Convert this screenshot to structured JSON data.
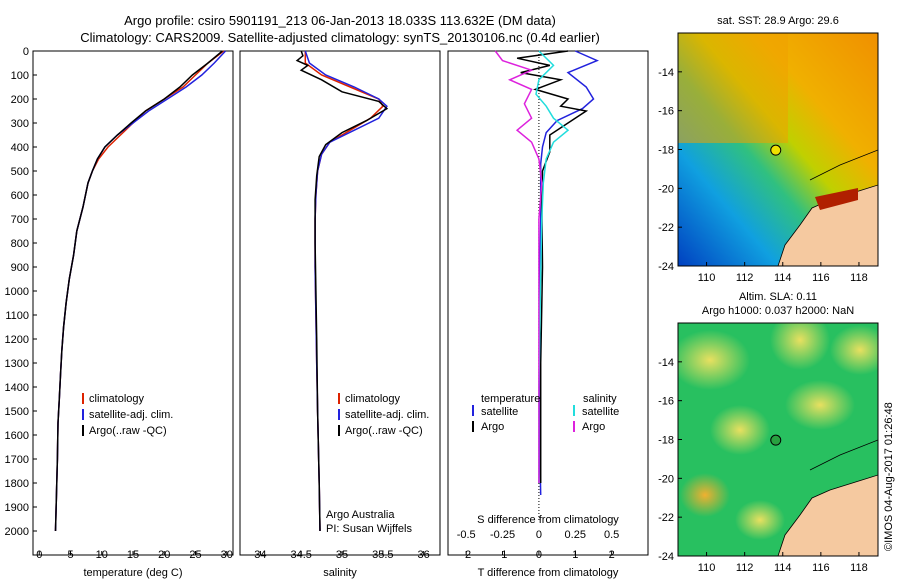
{
  "header": {
    "line1": "Argo profile: csiro 5901191_213 06-Jan-2013 18.033S 113.632E (DM data)",
    "line2": "Climatology: CARS2009. Satellite-adjusted climatology: synTS_20130106.nc (0.4d earlier)"
  },
  "colors": {
    "climatology": "#dd2200",
    "satellite": "#2222dd",
    "argo": "#000000",
    "salinity_sat": "#22dddd",
    "salinity_argo": "#dd22dd"
  },
  "chart_data": [
    {
      "type": "line",
      "panel": "temperature",
      "xlabel": "temperature (deg C)",
      "ylabel": "",
      "xlim": [
        -1,
        31
      ],
      "ylim": [
        2100,
        0
      ],
      "xticks": [
        0,
        5,
        10,
        15,
        20,
        25,
        30
      ],
      "yticks": [
        0,
        100,
        200,
        300,
        400,
        500,
        600,
        700,
        800,
        900,
        1000,
        1100,
        1200,
        1300,
        1400,
        1500,
        1600,
        1700,
        1800,
        1900,
        2000
      ],
      "legend": [
        "climatology",
        "satellite-adj. clim.",
        "Argo(..raw -QC)"
      ],
      "series": [
        {
          "name": "climatology",
          "color": "#dd2200",
          "x": [
            29.5,
            27,
            25,
            23,
            20,
            17,
            15,
            13,
            11,
            9.5,
            8.5,
            7.8,
            7,
            6,
            5.5,
            4.8,
            4.3,
            3.9,
            3.6,
            3.4,
            3.2,
            3,
            2.9,
            2.6
          ],
          "y": [
            0,
            50,
            100,
            150,
            200,
            250,
            300,
            350,
            400,
            450,
            500,
            550,
            650,
            750,
            850,
            950,
            1050,
            1150,
            1250,
            1350,
            1450,
            1550,
            1700,
            2000
          ]
        },
        {
          "name": "satellite-adj. clim.",
          "color": "#2222dd",
          "x": [
            29.8,
            28,
            26,
            23.5,
            20.5,
            17.5,
            15,
            12.5,
            10.5,
            9.3,
            8.5,
            7.8,
            7,
            6,
            5.5,
            4.8,
            4.3,
            3.9,
            3.6,
            3.4,
            3.2,
            3,
            2.9,
            2.6
          ],
          "y": [
            0,
            50,
            100,
            150,
            200,
            250,
            300,
            350,
            400,
            450,
            500,
            550,
            650,
            750,
            850,
            950,
            1050,
            1150,
            1250,
            1350,
            1450,
            1550,
            1700,
            2000
          ]
        },
        {
          "name": "Argo(..raw -QC)",
          "color": "#000000",
          "x": [
            29.3,
            27,
            24.5,
            22.5,
            20,
            17,
            14.7,
            12.5,
            10.5,
            9.3,
            8.5,
            7.8,
            7,
            6,
            5.5,
            4.8,
            4.3,
            3.9,
            3.6,
            3.4,
            3.2,
            3,
            2.9,
            2.6
          ],
          "y": [
            0,
            50,
            100,
            150,
            200,
            250,
            300,
            350,
            400,
            450,
            500,
            550,
            650,
            750,
            850,
            950,
            1050,
            1150,
            1250,
            1350,
            1450,
            1550,
            1700,
            2000
          ]
        }
      ]
    },
    {
      "type": "line",
      "panel": "salinity",
      "xlabel": "salinity",
      "xlim": [
        33.75,
        36.2
      ],
      "ylim": [
        2100,
        0
      ],
      "xticks": [
        34,
        34.5,
        35,
        35.5,
        36
      ],
      "xticklabels": [
        "34",
        "34.5",
        "35",
        "35.5",
        "36"
      ],
      "legend": [
        "climatology",
        "satellite-adj. clim.",
        "Argo(..raw -QC)"
      ],
      "annotation": [
        "Argo Australia",
        "PI: Susan Wijffels"
      ],
      "series": [
        {
          "name": "climatology",
          "color": "#dd2200",
          "x": [
            34.55,
            34.55,
            34.75,
            35.1,
            35.45,
            35.5,
            35.35,
            35.1,
            34.85,
            34.75,
            34.7,
            34.68,
            34.67,
            34.67,
            34.68,
            34.69,
            34.7,
            34.72,
            34.73
          ],
          "y": [
            0,
            50,
            100,
            150,
            200,
            230,
            280,
            330,
            380,
            430,
            500,
            600,
            700,
            900,
            1100,
            1300,
            1500,
            1800,
            2000
          ]
        },
        {
          "name": "satellite-adj. clim.",
          "color": "#2222dd",
          "x": [
            34.55,
            34.6,
            34.8,
            35.15,
            35.45,
            35.55,
            35.45,
            35.15,
            34.85,
            34.75,
            34.7,
            34.68,
            34.67,
            34.67,
            34.68,
            34.69,
            34.7,
            34.72,
            34.73
          ],
          "y": [
            0,
            50,
            100,
            150,
            200,
            230,
            280,
            330,
            380,
            430,
            500,
            600,
            700,
            900,
            1100,
            1300,
            1500,
            1800,
            2000
          ]
        },
        {
          "name": "Argo(..raw -QC)",
          "color": "#000000",
          "x": [
            34.5,
            34.52,
            34.45,
            34.58,
            34.5,
            34.75,
            35.0,
            35.45,
            35.55,
            35.3,
            35.0,
            34.8,
            34.72,
            34.69,
            34.67,
            34.67,
            34.68,
            34.69,
            34.7,
            34.72,
            34.73
          ],
          "y": [
            0,
            20,
            40,
            60,
            80,
            120,
            170,
            210,
            240,
            290,
            340,
            390,
            440,
            520,
            620,
            800,
            1000,
            1200,
            1500,
            1800,
            2000
          ]
        }
      ]
    },
    {
      "type": "line",
      "panel": "difference",
      "xlabel": "T difference from climatology",
      "xlabel_top": "S difference from climatology",
      "xlim": [
        -2.5,
        3
      ],
      "ylim": [
        2100,
        0
      ],
      "xticks_T": [
        -2,
        -1,
        0,
        1,
        2
      ],
      "xticks_S": [
        -0.5,
        -0.25,
        0,
        0.25,
        0.5
      ],
      "xticklabels_S": [
        "-0.5",
        "-0.25",
        "0",
        "0.25",
        "0.5"
      ],
      "legend_T_title": "temperature",
      "legend_S_title": "salinity",
      "legend_T": [
        "satellite",
        "Argo"
      ],
      "legend_S": [
        "satellite",
        "Argo"
      ],
      "series": [
        {
          "name": "T satellite",
          "color": "#2222dd",
          "x": [
            1.0,
            1.6,
            0.8,
            1.3,
            1.5,
            1.2,
            0.5,
            0.2,
            0.1,
            0.05,
            0.05,
            0.05,
            0.02,
            0.03,
            0.03,
            0.05
          ],
          "y": [
            0,
            40,
            90,
            150,
            200,
            240,
            290,
            340,
            400,
            470,
            550,
            700,
            1000,
            1400,
            1700,
            1850
          ]
        },
        {
          "name": "T Argo",
          "color": "#000000",
          "x": [
            0.8,
            -0.6,
            0.3,
            -0.5,
            0.6,
            -0.1,
            0.8,
            0.6,
            1.3,
            0.8,
            0.3,
            0.3,
            0.1,
            0.08,
            0.1,
            0.05,
            0.05,
            0.05
          ],
          "y": [
            0,
            30,
            60,
            90,
            120,
            160,
            200,
            230,
            250,
            300,
            350,
            420,
            500,
            650,
            900,
            1300,
            1700,
            1800
          ]
        },
        {
          "name": "S satellite",
          "color": "#22dddd",
          "x": [
            0.0,
            0.1,
            0.0,
            -0.02,
            0.05,
            0.1,
            0.2,
            0.1,
            0.05,
            0.03,
            0.02,
            0.01,
            0.0,
            0.0,
            0.0
          ],
          "y": [
            0,
            60,
            120,
            180,
            230,
            280,
            330,
            380,
            450,
            550,
            700,
            1000,
            1400,
            1700,
            1800
          ]
        },
        {
          "name": "S Argo",
          "color": "#dd22dd",
          "x": [
            -0.3,
            -0.25,
            -0.05,
            -0.2,
            -0.05,
            -0.1,
            -0.05,
            -0.15,
            -0.05,
            0.0,
            0.02,
            0.0,
            0.0,
            0.0,
            0.0
          ],
          "y": [
            0,
            40,
            80,
            120,
            160,
            220,
            280,
            330,
            380,
            450,
            550,
            700,
            1000,
            1400,
            1800
          ]
        }
      ]
    },
    {
      "type": "heatmap",
      "panel": "sst-map",
      "title": "sat. SST: 28.9  Argo: 29.6",
      "xlim": [
        108.5,
        119
      ],
      "ylim": [
        -24,
        -12
      ],
      "xticks": [
        110,
        112,
        114,
        116,
        118
      ],
      "yticks": [
        -14,
        -16,
        -18,
        -20,
        -22,
        -24
      ],
      "argo_position": [
        113.632,
        -18.033
      ]
    },
    {
      "type": "heatmap",
      "panel": "sla-map",
      "title_line1": "Altim. SLA: 0.11",
      "title_line2": "Argo h1000: 0.037 h2000: NaN",
      "xlim": [
        108.5,
        119
      ],
      "ylim": [
        -24,
        -12
      ],
      "xticks": [
        110,
        112,
        114,
        116,
        118
      ],
      "yticks": [
        -14,
        -16,
        -18,
        -20,
        -22,
        -24
      ],
      "argo_position": [
        113.632,
        -18.033
      ]
    }
  ],
  "watermark": "©IMOS 04-Aug-2017 01:26:48"
}
